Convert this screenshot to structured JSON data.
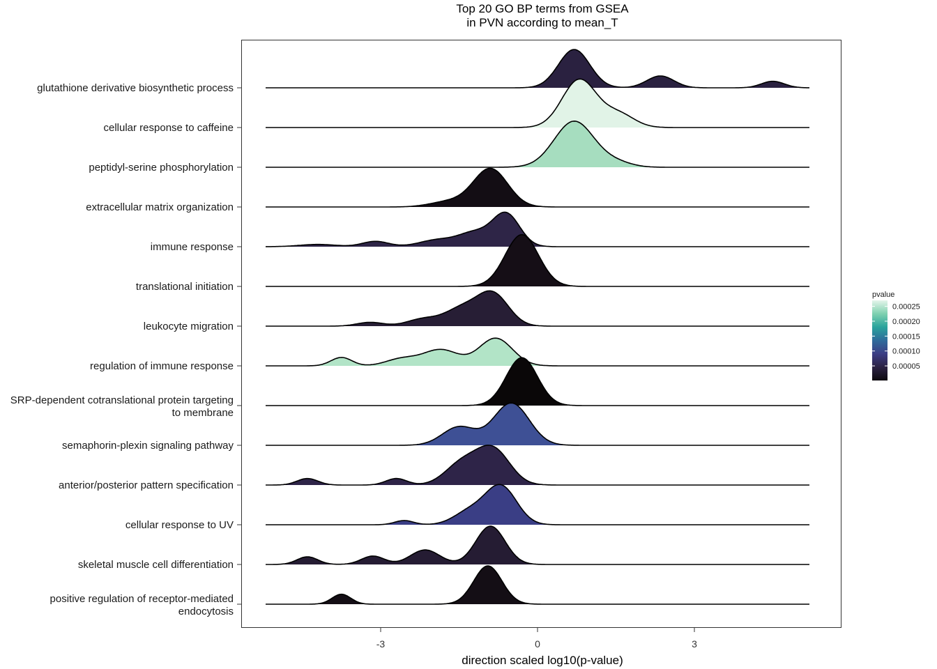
{
  "chart_data": {
    "type": "ridgeline",
    "title": "Top 20 GO BP terms from GSEA\nin PVN according to mean_T",
    "xlabel": "direction scaled log10(p-value)",
    "ylabel": "",
    "xlim": [
      -5.8,
      5.8
    ],
    "x_ticks": [
      -3,
      0,
      3
    ],
    "x_tick_labels": [
      "-3",
      "0",
      "3"
    ],
    "grid": false,
    "legend": {
      "title": "pvalue",
      "position": "right",
      "ticks": [
        5e-05,
        0.0001,
        0.00015,
        0.0002,
        0.00025
      ],
      "tick_labels": [
        "0.00005",
        "0.00010",
        "0.00015",
        "0.00020",
        "0.00025"
      ],
      "range": [
        1e-06,
        0.00027
      ],
      "palette": [
        "#0d0a0e",
        "#2b2243",
        "#3c3d85",
        "#2f6b9b",
        "#2aa39c",
        "#7fd1b0",
        "#e4f5ea"
      ]
    },
    "series": [
      {
        "name": "positive regulation of receptor-mediated\nendocytosis",
        "pvalue": 2e-06,
        "color": "#140e15",
        "peaks": [
          [
            -3.75,
            0.26,
            0.18
          ],
          [
            -0.95,
            1.0,
            0.27
          ]
        ]
      },
      {
        "name": "skeletal muscle cell differentiation",
        "pvalue": 3e-05,
        "color": "#251c33",
        "peaks": [
          [
            -4.4,
            0.2,
            0.2
          ],
          [
            -3.15,
            0.22,
            0.22
          ],
          [
            -2.15,
            0.38,
            0.28
          ],
          [
            -0.9,
            1.0,
            0.28
          ]
        ]
      },
      {
        "name": "cellular response to UV",
        "pvalue": 9e-05,
        "color": "#3a3e85",
        "peaks": [
          [
            -2.55,
            0.11,
            0.18
          ],
          [
            -1.3,
            0.34,
            0.3
          ],
          [
            -0.7,
            1.0,
            0.3
          ]
        ]
      },
      {
        "name": "anterior/posterior pattern specification",
        "pvalue": 4e-05,
        "color": "#2e2448",
        "peaks": [
          [
            -4.4,
            0.17,
            0.2
          ],
          [
            -2.7,
            0.17,
            0.2
          ],
          [
            -1.45,
            0.55,
            0.32
          ],
          [
            -0.85,
            0.92,
            0.32
          ]
        ]
      },
      {
        "name": "semaphorin-plexin signaling pathway",
        "pvalue": 8e-05,
        "color": "#3e5095",
        "peaks": [
          [
            -1.5,
            0.48,
            0.32
          ],
          [
            -0.5,
            1.1,
            0.34
          ]
        ]
      },
      {
        "name": "SRP-dependent cotranslational protein targeting\nto membrane",
        "pvalue": 5e-07,
        "color": "#0a0708",
        "peaks": [
          [
            -0.3,
            1.25,
            0.3
          ]
        ]
      },
      {
        "name": "regulation of immune response",
        "pvalue": 0.00023,
        "color": "#b2e4c7",
        "peaks": [
          [
            -3.75,
            0.22,
            0.2
          ],
          [
            -2.6,
            0.18,
            0.3
          ],
          [
            -1.85,
            0.42,
            0.34
          ],
          [
            -0.8,
            0.72,
            0.32
          ]
        ]
      },
      {
        "name": "leukocyte migration",
        "pvalue": 3e-05,
        "color": "#271e35",
        "peaks": [
          [
            -3.2,
            0.1,
            0.25
          ],
          [
            -2.2,
            0.18,
            0.3
          ],
          [
            -1.45,
            0.45,
            0.33
          ],
          [
            -0.85,
            0.82,
            0.3
          ]
        ]
      },
      {
        "name": "translational initiation",
        "pvalue": 3e-06,
        "color": "#150e16",
        "peaks": [
          [
            -0.3,
            1.35,
            0.32
          ]
        ]
      },
      {
        "name": "immune response",
        "pvalue": 4e-05,
        "color": "#2e2547",
        "peaks": [
          [
            -4.2,
            0.06,
            0.35
          ],
          [
            -3.1,
            0.14,
            0.25
          ],
          [
            -1.9,
            0.18,
            0.35
          ],
          [
            -1.2,
            0.35,
            0.3
          ],
          [
            -0.6,
            0.85,
            0.26
          ]
        ]
      },
      {
        "name": "extracellular matrix organization",
        "pvalue": 2e-06,
        "color": "#130d14",
        "peaks": [
          [
            -1.7,
            0.14,
            0.35
          ],
          [
            -0.9,
            1.0,
            0.33
          ]
        ]
      },
      {
        "name": "peptidyl-serine phosphorylation",
        "pvalue": 0.000205,
        "color": "#a6ddbf",
        "peaks": [
          [
            0.7,
            1.2,
            0.38
          ],
          [
            1.5,
            0.12,
            0.3
          ]
        ]
      },
      {
        "name": "cellular response to caffeine",
        "pvalue": 0.00027,
        "color": "#e1f3e7",
        "peaks": [
          [
            0.8,
            1.25,
            0.33
          ],
          [
            1.55,
            0.35,
            0.3
          ]
        ]
      },
      {
        "name": "glutathione derivative biosynthetic process",
        "pvalue": 3e-05,
        "color": "#2a2140",
        "peaks": [
          [
            0.7,
            1.0,
            0.3
          ],
          [
            2.35,
            0.31,
            0.26
          ],
          [
            4.5,
            0.17,
            0.22
          ]
        ]
      }
    ]
  }
}
